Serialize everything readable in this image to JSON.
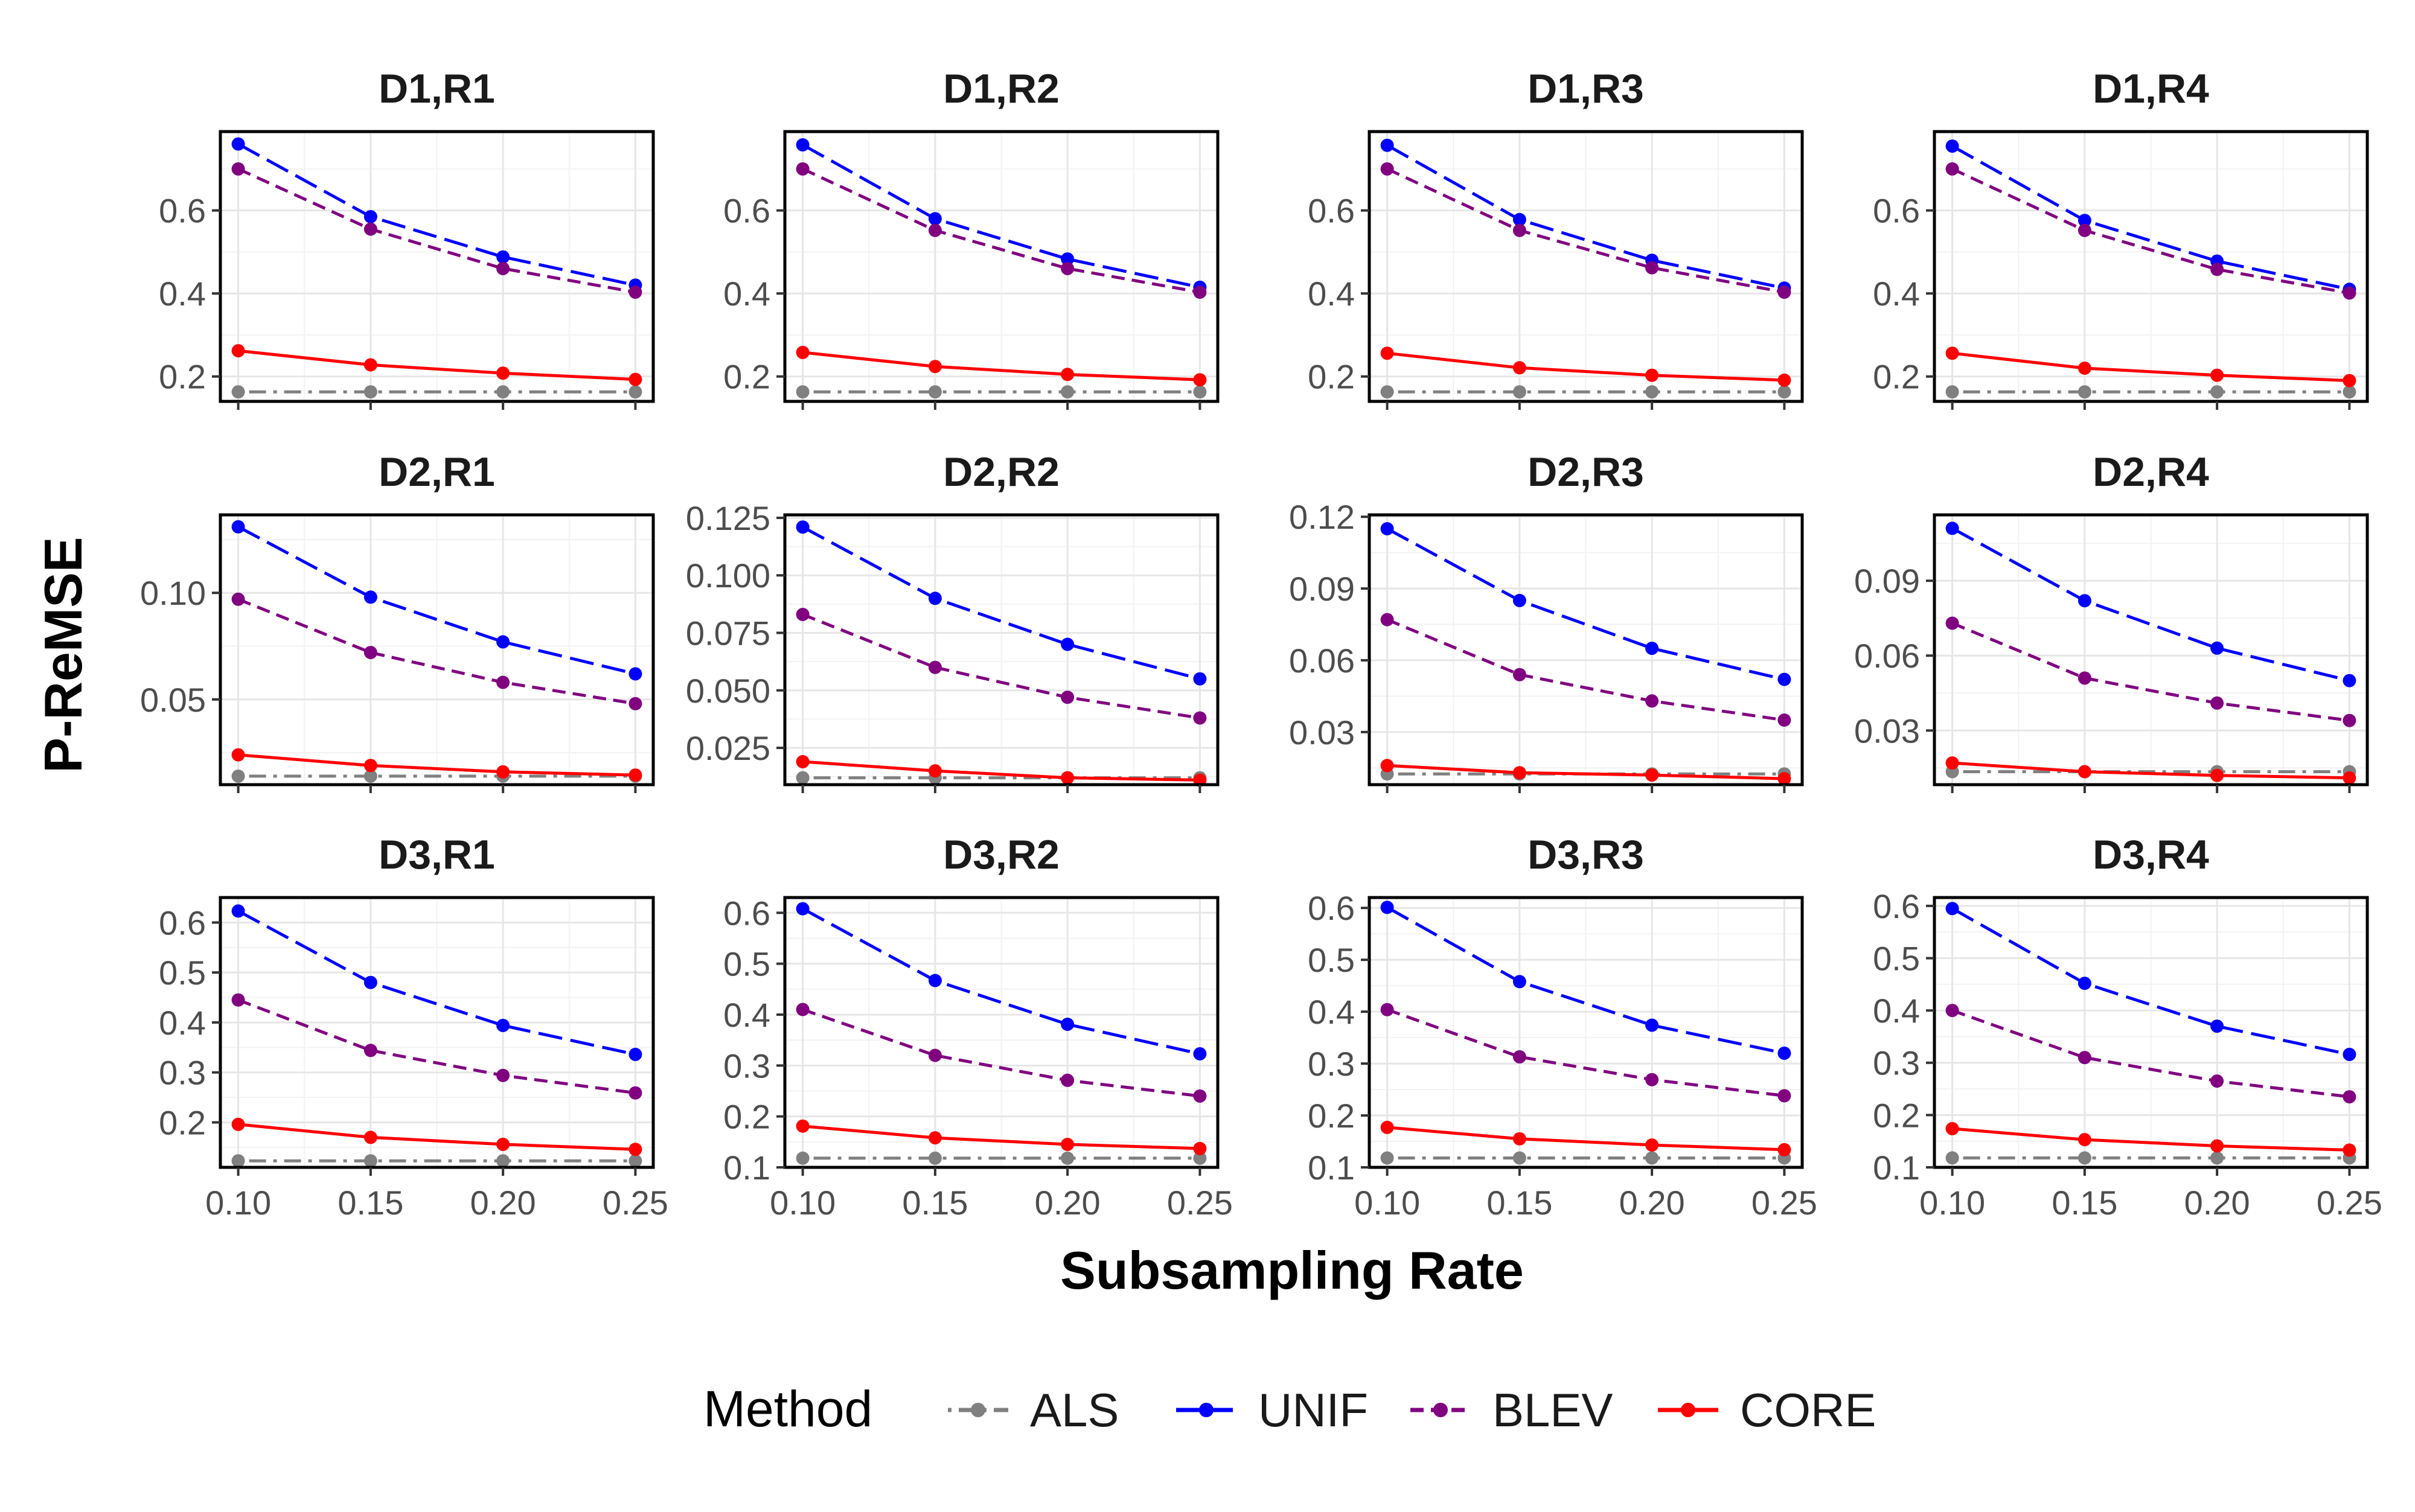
{
  "chart_data": {
    "type": "line",
    "xlabel": "Subsampling Rate",
    "ylabel": "P-ReMSE",
    "x": [
      0.1,
      0.15,
      0.2,
      0.25
    ],
    "x_tick_labels": [
      "0.10",
      "0.15",
      "0.20",
      "0.25"
    ],
    "grid": true,
    "legend": {
      "title": "Method",
      "position": "bottom",
      "entries": [
        {
          "name": "ALS",
          "color": "#808080",
          "dash": "dotdash"
        },
        {
          "name": "UNIF",
          "color": "#0000ff",
          "dash": "longdash"
        },
        {
          "name": "BLEV",
          "color": "#800080",
          "dash": "dashed"
        },
        {
          "name": "CORE",
          "color": "#ff0000",
          "dash": "solid"
        }
      ]
    },
    "panels": [
      {
        "title": "D1,R1",
        "ylim": [
          0.14,
          0.79
        ],
        "y_ticks": [
          0.2,
          0.4,
          0.6
        ],
        "y_tick_labels": [
          "0.2",
          "0.4",
          "0.6"
        ],
        "series": [
          {
            "name": "ALS",
            "values": [
              0.163,
              0.163,
              0.163,
              0.163
            ]
          },
          {
            "name": "UNIF",
            "values": [
              0.76,
              0.585,
              0.488,
              0.42
            ]
          },
          {
            "name": "BLEV",
            "values": [
              0.7,
              0.555,
              0.46,
              0.403
            ]
          },
          {
            "name": "CORE",
            "values": [
              0.262,
              0.228,
              0.208,
              0.193
            ]
          }
        ]
      },
      {
        "title": "D1,R2",
        "ylim": [
          0.14,
          0.79
        ],
        "y_ticks": [
          0.2,
          0.4,
          0.6
        ],
        "y_tick_labels": [
          "0.2",
          "0.4",
          "0.6"
        ],
        "series": [
          {
            "name": "ALS",
            "values": [
              0.163,
              0.163,
              0.163,
              0.163
            ]
          },
          {
            "name": "UNIF",
            "values": [
              0.758,
              0.58,
              0.483,
              0.415
            ]
          },
          {
            "name": "BLEV",
            "values": [
              0.7,
              0.552,
              0.46,
              0.403
            ]
          },
          {
            "name": "CORE",
            "values": [
              0.258,
              0.224,
              0.205,
              0.192
            ]
          }
        ]
      },
      {
        "title": "D1,R3",
        "ylim": [
          0.14,
          0.79
        ],
        "y_ticks": [
          0.2,
          0.4,
          0.6
        ],
        "y_tick_labels": [
          "0.2",
          "0.4",
          "0.6"
        ],
        "series": [
          {
            "name": "ALS",
            "values": [
              0.163,
              0.163,
              0.163,
              0.163
            ]
          },
          {
            "name": "UNIF",
            "values": [
              0.757,
              0.578,
              0.48,
              0.413
            ]
          },
          {
            "name": "BLEV",
            "values": [
              0.7,
              0.552,
              0.462,
              0.403
            ]
          },
          {
            "name": "CORE",
            "values": [
              0.256,
              0.221,
              0.203,
              0.191
            ]
          }
        ]
      },
      {
        "title": "D1,R4",
        "ylim": [
          0.14,
          0.79
        ],
        "y_ticks": [
          0.2,
          0.4,
          0.6
        ],
        "y_tick_labels": [
          "0.2",
          "0.4",
          "0.6"
        ],
        "series": [
          {
            "name": "ALS",
            "values": [
              0.163,
              0.163,
              0.163,
              0.163
            ]
          },
          {
            "name": "UNIF",
            "values": [
              0.755,
              0.576,
              0.478,
              0.41
            ]
          },
          {
            "name": "BLEV",
            "values": [
              0.7,
              0.552,
              0.458,
              0.401
            ]
          },
          {
            "name": "CORE",
            "values": [
              0.256,
              0.22,
              0.203,
              0.19
            ]
          }
        ]
      },
      {
        "title": "D2,R1",
        "ylim": [
          0.01,
          0.1366
        ],
        "y_ticks": [
          0.05,
          0.1
        ],
        "y_tick_labels": [
          "0.05",
          "0.10"
        ],
        "series": [
          {
            "name": "ALS",
            "values": [
              0.014,
              0.014,
              0.014,
              0.014
            ]
          },
          {
            "name": "UNIF",
            "values": [
              0.131,
              0.098,
              0.077,
              0.062
            ]
          },
          {
            "name": "BLEV",
            "values": [
              0.097,
              0.072,
              0.058,
              0.048
            ]
          },
          {
            "name": "CORE",
            "values": [
              0.024,
              0.019,
              0.016,
              0.0145
            ]
          }
        ]
      },
      {
        "title": "D2,R2",
        "ylim": [
          0.009,
          0.1263
        ],
        "y_ticks": [
          0.025,
          0.05,
          0.075,
          0.1,
          0.125
        ],
        "y_tick_labels": [
          "0.025",
          "0.050",
          "0.075",
          "0.100",
          "0.125"
        ],
        "series": [
          {
            "name": "ALS",
            "values": [
              0.012,
              0.012,
              0.012,
              0.012
            ]
          },
          {
            "name": "UNIF",
            "values": [
              0.121,
              0.09,
              0.07,
              0.055
            ]
          },
          {
            "name": "BLEV",
            "values": [
              0.083,
              0.06,
              0.047,
              0.038
            ]
          },
          {
            "name": "CORE",
            "values": [
              0.019,
              0.015,
              0.012,
              0.011
            ]
          }
        ]
      },
      {
        "title": "D2,R3",
        "ylim": [
          0.008,
          0.1208
        ],
        "y_ticks": [
          0.03,
          0.06,
          0.09,
          0.12
        ],
        "y_tick_labels": [
          "0.03",
          "0.06",
          "0.09",
          "0.12"
        ],
        "series": [
          {
            "name": "ALS",
            "values": [
              0.0125,
              0.0125,
              0.0125,
              0.0125
            ]
          },
          {
            "name": "UNIF",
            "values": [
              0.115,
              0.085,
              0.065,
              0.052
            ]
          },
          {
            "name": "BLEV",
            "values": [
              0.077,
              0.054,
              0.043,
              0.035
            ]
          },
          {
            "name": "CORE",
            "values": [
              0.016,
              0.013,
              0.012,
              0.0105
            ]
          }
        ]
      },
      {
        "title": "D2,R4",
        "ylim": [
          0.0083,
          0.1164
        ],
        "y_ticks": [
          0.03,
          0.06,
          0.09
        ],
        "y_tick_labels": [
          "0.03",
          "0.06",
          "0.09"
        ],
        "series": [
          {
            "name": "ALS",
            "values": [
              0.0135,
              0.0135,
              0.0135,
              0.0135
            ]
          },
          {
            "name": "UNIF",
            "values": [
              0.111,
              0.082,
              0.063,
              0.05
            ]
          },
          {
            "name": "BLEV",
            "values": [
              0.073,
              0.051,
              0.041,
              0.034
            ]
          },
          {
            "name": "CORE",
            "values": [
              0.017,
              0.0135,
              0.012,
              0.011
            ]
          }
        ]
      },
      {
        "title": "D3,R1",
        "ylim": [
          0.11,
          0.65
        ],
        "y_ticks": [
          0.2,
          0.3,
          0.4,
          0.5,
          0.6
        ],
        "y_tick_labels": [
          "0.2",
          "0.3",
          "0.4",
          "0.5",
          "0.6"
        ],
        "series": [
          {
            "name": "ALS",
            "values": [
              0.123,
              0.123,
              0.123,
              0.123
            ]
          },
          {
            "name": "UNIF",
            "values": [
              0.623,
              0.48,
              0.394,
              0.336
            ]
          },
          {
            "name": "BLEV",
            "values": [
              0.445,
              0.344,
              0.294,
              0.259
            ]
          },
          {
            "name": "CORE",
            "values": [
              0.196,
              0.17,
              0.156,
              0.146
            ]
          }
        ]
      },
      {
        "title": "D3,R2",
        "ylim": [
          0.1,
          0.63
        ],
        "y_ticks": [
          0.1,
          0.2,
          0.3,
          0.4,
          0.5,
          0.6
        ],
        "y_tick_labels": [
          "0.1",
          "0.2",
          "0.3",
          "0.4",
          "0.5",
          "0.6"
        ],
        "series": [
          {
            "name": "ALS",
            "values": [
              0.118,
              0.118,
              0.118,
              0.118
            ]
          },
          {
            "name": "UNIF",
            "values": [
              0.608,
              0.467,
              0.381,
              0.323
            ]
          },
          {
            "name": "BLEV",
            "values": [
              0.41,
              0.32,
              0.271,
              0.24
            ]
          },
          {
            "name": "CORE",
            "values": [
              0.181,
              0.158,
              0.145,
              0.137
            ]
          }
        ]
      },
      {
        "title": "D3,R3",
        "ylim": [
          0.1,
          0.62
        ],
        "y_ticks": [
          0.1,
          0.2,
          0.3,
          0.4,
          0.5,
          0.6
        ],
        "y_tick_labels": [
          "0.1",
          "0.2",
          "0.3",
          "0.4",
          "0.5",
          "0.6"
        ],
        "series": [
          {
            "name": "ALS",
            "values": [
              0.118,
              0.118,
              0.118,
              0.118
            ]
          },
          {
            "name": "UNIF",
            "values": [
              0.601,
              0.458,
              0.374,
              0.32
            ]
          },
          {
            "name": "BLEV",
            "values": [
              0.404,
              0.313,
              0.269,
              0.238
            ]
          },
          {
            "name": "CORE",
            "values": [
              0.177,
              0.155,
              0.143,
              0.134
            ]
          }
        ]
      },
      {
        "title": "D3,R4",
        "ylim": [
          0.1,
          0.616
        ],
        "y_ticks": [
          0.1,
          0.2,
          0.3,
          0.4,
          0.5,
          0.6
        ],
        "y_tick_labels": [
          "0.1",
          "0.2",
          "0.3",
          "0.4",
          "0.5",
          "0.6"
        ],
        "series": [
          {
            "name": "ALS",
            "values": [
              0.118,
              0.118,
              0.118,
              0.118
            ]
          },
          {
            "name": "UNIF",
            "values": [
              0.595,
              0.452,
              0.37,
              0.316
            ]
          },
          {
            "name": "BLEV",
            "values": [
              0.4,
              0.31,
              0.265,
              0.235
            ]
          },
          {
            "name": "CORE",
            "values": [
              0.174,
              0.153,
              0.141,
              0.133
            ]
          }
        ]
      }
    ]
  }
}
